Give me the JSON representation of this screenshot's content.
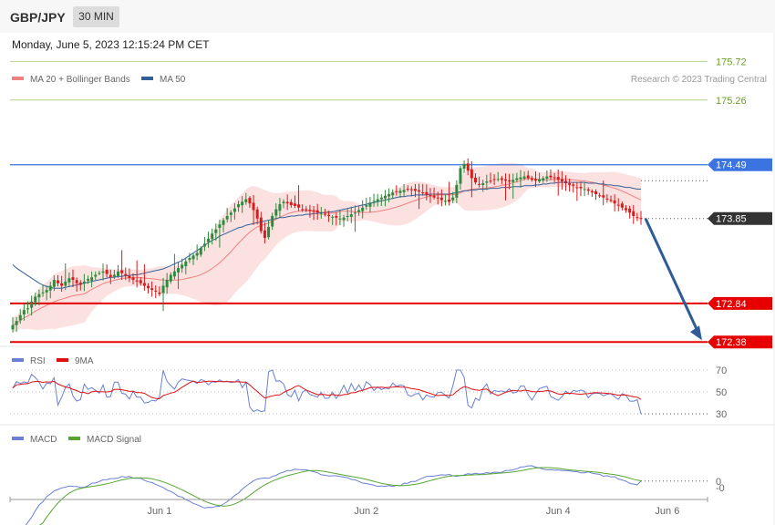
{
  "header": {
    "symbol": "GBP/JPY",
    "timeframe": "30 MIN"
  },
  "datetime": "Monday, June 5, 2023 12:15:24 PM CET",
  "credit": "Research © 2023 Trading Central",
  "colors": {
    "bull": "#2e8b3e",
    "bear": "#d81b1b",
    "band": "#fcdcdc",
    "ma20": "#f08080",
    "ma50": "#335f99",
    "rsi": "#6a7fd6",
    "rsi_ma": "#e01010",
    "macd": "#6a7fd6",
    "macd_signal": "#55a630",
    "resistance": "#6b9e2a",
    "pivot": "#3b73e0",
    "support": "#e60000",
    "current": "#333333",
    "arrow": "#2f5c96"
  },
  "chart_data": [
    {
      "type": "candlestick",
      "name": "price",
      "legend": [
        {
          "label": "MA 20 + Bollinger Bands",
          "color": "#f08080"
        },
        {
          "label": "MA 50",
          "color": "#335f99"
        }
      ],
      "ylim": [
        172.35,
        175.8
      ],
      "x_tick_labels": [
        {
          "label": "Jun 1",
          "index": 39
        },
        {
          "label": "Jun 2",
          "index": 94
        },
        {
          "label": "Jun 4",
          "index": 145
        },
        {
          "label": "Jun 6",
          "index": 174
        }
      ],
      "levels": [
        {
          "label": "175.72",
          "value": 175.72,
          "kind": "resistance"
        },
        {
          "label": "175.26",
          "value": 175.26,
          "kind": "resistance"
        },
        {
          "label": "174.49",
          "value": 174.49,
          "kind": "pivot"
        },
        {
          "label": "173.85",
          "value": 173.85,
          "kind": "current"
        },
        {
          "label": "172.84",
          "value": 172.84,
          "kind": "support"
        },
        {
          "label": "172.38",
          "value": 172.38,
          "kind": "support"
        }
      ],
      "projection": {
        "from": 173.85,
        "to": 172.38
      },
      "series_close": [
        172.58,
        172.63,
        172.7,
        172.76,
        172.78,
        172.86,
        172.92,
        172.95,
        172.97,
        173.0,
        173.05,
        173.12,
        173.08,
        173.05,
        173.1,
        173.14,
        173.12,
        173.08,
        173.06,
        173.1,
        173.13,
        173.15,
        173.18,
        173.2,
        173.22,
        173.19,
        173.15,
        173.18,
        173.22,
        173.2,
        173.17,
        173.14,
        173.12,
        173.1,
        173.08,
        173.05,
        173.02,
        173.0,
        172.98,
        172.95,
        173.05,
        173.12,
        173.18,
        173.22,
        173.26,
        173.3,
        173.34,
        173.38,
        173.41,
        173.44,
        173.5,
        173.55,
        173.61,
        173.67,
        173.72,
        173.78,
        173.83,
        173.88,
        173.92,
        173.97,
        174.02,
        174.05,
        174.08,
        174.03,
        173.95,
        173.85,
        173.7,
        173.62,
        173.75,
        173.88,
        173.96,
        174.02,
        174.05,
        174.03,
        174.01,
        174.0,
        173.98,
        173.96,
        173.95,
        173.94,
        173.93,
        173.92,
        173.91,
        173.9,
        173.88,
        173.87,
        173.86,
        173.85,
        173.86,
        173.88,
        173.9,
        173.92,
        173.95,
        173.98,
        174.01,
        174.04,
        174.06,
        174.08,
        174.1,
        174.12,
        174.14,
        174.16,
        174.17,
        174.18,
        174.19,
        174.2,
        174.19,
        174.18,
        174.17,
        174.15,
        174.13,
        174.12,
        174.1,
        174.09,
        174.07,
        174.06,
        174.05,
        174.1,
        174.25,
        174.45,
        174.5,
        174.42,
        174.33,
        174.28,
        174.26,
        174.27,
        174.29,
        174.3,
        174.31,
        174.32,
        174.31,
        174.3,
        174.29,
        174.31,
        174.33,
        174.34,
        174.35,
        174.33,
        174.31,
        174.3,
        174.32,
        174.33,
        174.35,
        174.34,
        174.33,
        174.31,
        174.29,
        174.27,
        174.25,
        174.24,
        174.22,
        174.21,
        174.2,
        174.18,
        174.16,
        174.14,
        174.12,
        174.1,
        174.08,
        174.06,
        174.03,
        174.01,
        173.98,
        173.95,
        173.92,
        173.88,
        173.86,
        173.85
      ],
      "series_ma50": [
        173.3,
        173.26,
        173.23,
        173.2,
        173.17,
        173.14,
        173.11,
        173.08,
        173.06,
        173.04,
        173.03,
        173.02,
        173.02,
        173.02,
        173.03,
        173.04,
        173.05,
        173.06,
        173.07,
        173.08,
        173.09,
        173.1,
        173.11,
        173.12,
        173.13,
        173.14,
        173.15,
        173.15,
        173.16,
        173.16,
        173.17,
        173.17,
        173.18,
        173.18,
        173.19,
        173.2,
        173.21,
        173.22,
        173.23,
        173.24,
        173.25,
        173.27,
        173.29,
        173.31,
        173.33,
        173.35,
        173.38,
        173.41,
        173.44,
        173.47,
        173.5,
        173.53,
        173.56,
        173.59,
        173.61,
        173.64,
        173.66,
        173.68,
        173.7,
        173.72,
        173.74,
        173.75,
        173.77,
        173.78,
        173.79,
        173.8,
        173.81,
        173.82,
        173.83,
        173.84,
        173.85,
        173.86,
        173.86,
        173.87,
        173.88,
        173.88,
        173.89,
        173.89,
        173.9,
        173.9,
        173.91,
        173.91,
        173.92,
        173.92,
        173.93,
        173.93,
        173.94,
        173.95,
        173.96,
        173.97,
        173.98,
        173.99,
        174.0,
        174.01,
        174.02,
        174.03,
        174.04,
        174.05,
        174.06,
        174.07,
        174.08,
        174.09,
        174.1,
        174.11,
        174.11,
        174.12,
        174.12,
        174.13,
        174.13,
        174.13,
        174.13,
        174.14,
        174.14,
        174.14,
        174.14,
        174.14,
        174.14,
        174.15,
        174.16,
        174.17,
        174.18,
        174.18,
        174.19,
        174.19,
        174.2,
        174.2,
        174.2,
        174.21,
        174.21,
        174.21,
        174.22,
        174.22,
        174.22,
        174.23,
        174.23,
        174.23,
        174.24,
        174.24,
        174.24,
        174.25,
        174.25,
        174.26,
        174.26,
        174.27,
        174.27,
        174.28,
        174.28,
        174.28,
        174.28,
        174.28,
        174.28,
        174.28,
        174.28,
        174.27,
        174.27,
        174.27,
        174.26,
        174.26,
        174.25,
        174.25,
        174.24,
        174.24,
        174.23,
        174.22,
        174.22,
        174.21,
        174.2,
        174.2
      ]
    },
    {
      "type": "line",
      "name": "rsi",
      "legend": [
        {
          "label": "RSI",
          "color": "#6a7fd6"
        },
        {
          "label": "9MA",
          "color": "#e01010"
        }
      ],
      "ylim": [
        25,
        75
      ],
      "y_tick_labels": [
        "70",
        "50",
        "30"
      ],
      "y_ticks": [
        70,
        50,
        30
      ],
      "current": 30
    },
    {
      "type": "line",
      "name": "macd",
      "legend": [
        {
          "label": "MACD",
          "color": "#6a7fd6"
        },
        {
          "label": "MACD Signal",
          "color": "#55a630"
        }
      ],
      "ylim": [
        -0.06,
        0.18
      ],
      "y_tick_labels": [
        "0",
        "-0"
      ],
      "y_ticks": [
        0.01,
        -0.02
      ],
      "current": 0.01
    }
  ]
}
